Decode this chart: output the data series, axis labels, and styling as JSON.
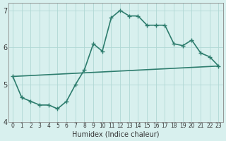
{
  "line1_x": [
    0,
    1,
    2,
    3,
    4,
    5,
    6,
    7,
    8,
    9,
    10,
    11,
    12,
    13,
    14,
    15,
    16,
    17,
    18,
    19,
    20,
    21,
    22,
    23
  ],
  "line1_y": [
    5.22,
    4.65,
    4.55,
    4.45,
    4.45,
    4.35,
    4.55,
    5.0,
    5.4,
    6.1,
    5.9,
    6.8,
    7.0,
    6.85,
    6.85,
    6.6,
    6.6,
    6.6,
    6.1,
    6.05,
    6.2,
    5.85,
    5.75,
    5.5
  ],
  "line2_x": [
    0,
    23
  ],
  "line2_y": [
    5.22,
    5.5
  ],
  "line_color": "#2e7d6e",
  "bg_color": "#d8f0ee",
  "grid_color": "#b0d8d4",
  "xlabel": "Humidex (Indice chaleur)",
  "ylim": [
    4.0,
    7.2
  ],
  "xlim": [
    -0.5,
    23.5
  ],
  "yticks": [
    4,
    5,
    6,
    7
  ],
  "xticks": [
    0,
    1,
    2,
    3,
    4,
    5,
    6,
    7,
    8,
    9,
    10,
    11,
    12,
    13,
    14,
    15,
    16,
    17,
    18,
    19,
    20,
    21,
    22,
    23
  ],
  "xtick_labels": [
    "0",
    "1",
    "2",
    "3",
    "4",
    "5",
    "6",
    "7",
    "8",
    "9",
    "10",
    "11",
    "12",
    "13",
    "14",
    "15",
    "16",
    "17",
    "18",
    "19",
    "20",
    "21",
    "22",
    "23"
  ],
  "marker": "+",
  "markersize": 5,
  "linewidth": 1.2
}
